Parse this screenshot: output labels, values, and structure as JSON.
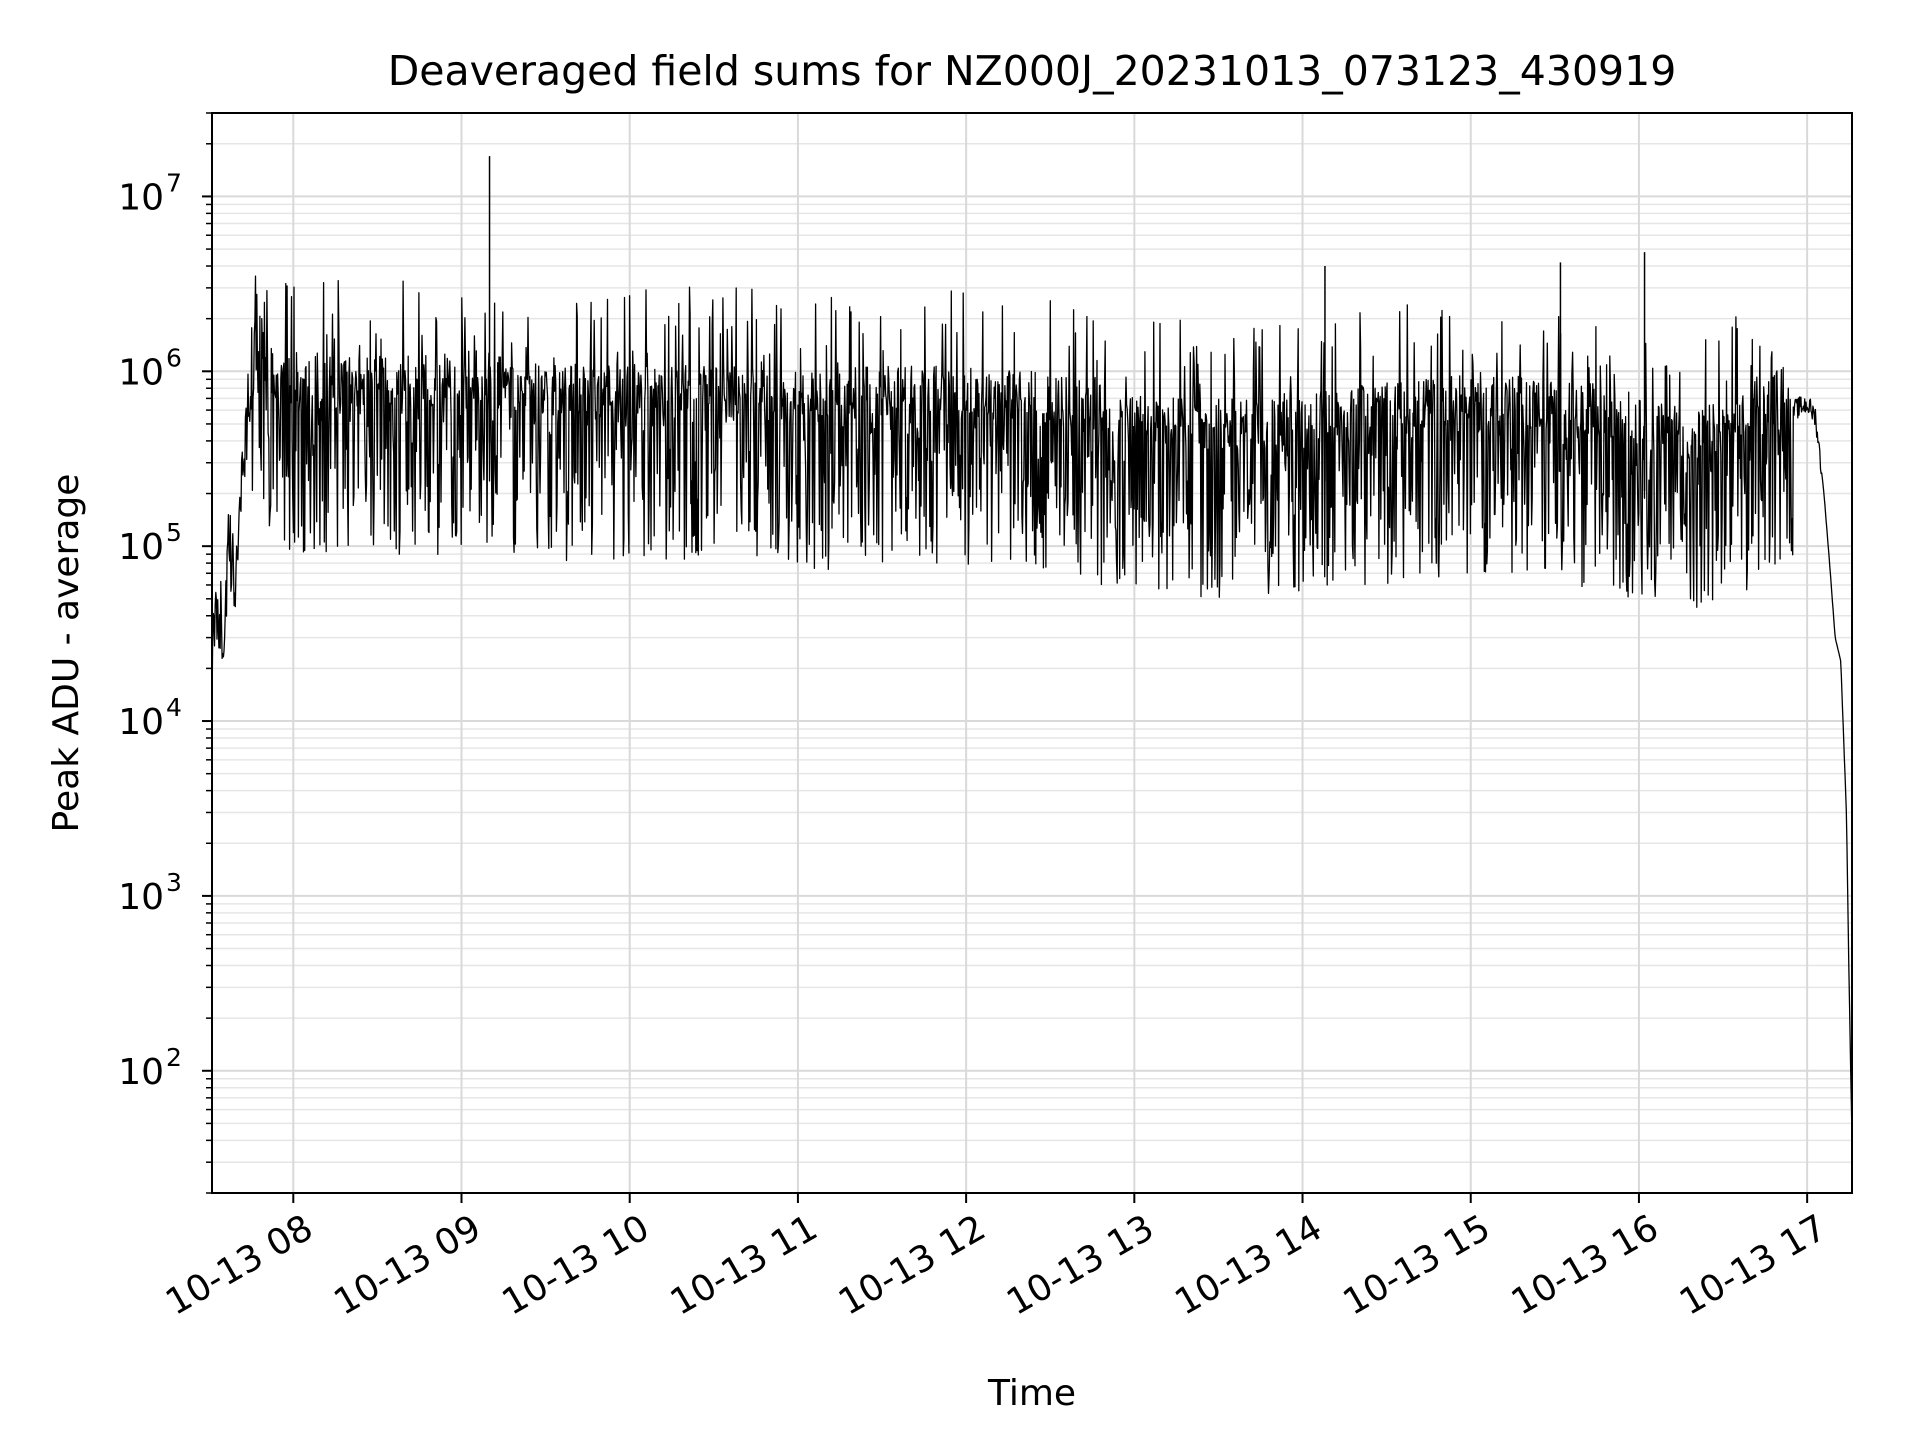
{
  "chart_data": {
    "type": "line",
    "title": "Deaveraged field sums for NZ000J_20231013_073123_430919",
    "xlabel": "Time",
    "ylabel": "Peak ADU - average",
    "yscale": "log",
    "ylim": [
      20,
      30000000
    ],
    "xlim": [
      "2023-10-13 07:31",
      "2023-10-13 17:16"
    ],
    "grid": true,
    "line_color": "#000000",
    "x_ticks": [
      "10-13 08",
      "10-13 09",
      "10-13 10",
      "10-13 11",
      "10-13 12",
      "10-13 13",
      "10-13 14",
      "10-13 15",
      "10-13 16",
      "10-13 17"
    ],
    "y_ticks": [
      {
        "base": "10",
        "exp": "2"
      },
      {
        "base": "10",
        "exp": "3"
      },
      {
        "base": "10",
        "exp": "4"
      },
      {
        "base": "10",
        "exp": "5"
      },
      {
        "base": "10",
        "exp": "6"
      },
      {
        "base": "10",
        "exp": "7"
      }
    ],
    "series": [
      {
        "x": [
          "2023-10-13 07:31",
          "2023-10-13 07:33",
          "2023-10-13 07:35",
          "2023-10-13 07:37",
          "2023-10-13 07:39",
          "2023-10-13 07:42",
          "2023-10-13 07:45",
          "2023-10-13 07:48",
          "2023-10-13 07:52",
          "2023-10-13 07:56",
          "2023-10-13 08:00",
          "2023-10-13 08:10",
          "2023-10-13 08:30",
          "2023-10-13 08:50",
          "2023-10-13 09:00",
          "2023-10-13 09:10",
          "2023-10-13 09:30",
          "2023-10-13 10:00",
          "2023-10-13 10:30",
          "2023-10-13 11:00",
          "2023-10-13 11:30",
          "2023-10-13 12:00",
          "2023-10-13 12:30",
          "2023-10-13 13:00",
          "2023-10-13 13:30",
          "2023-10-13 14:00",
          "2023-10-13 14:30",
          "2023-10-13 15:00",
          "2023-10-13 15:30",
          "2023-10-13 16:00",
          "2023-10-13 16:20",
          "2023-10-13 16:40",
          "2023-10-13 16:55",
          "2023-10-13 17:00",
          "2023-10-13 17:03",
          "2023-10-13 17:06",
          "2023-10-13 17:08",
          "2023-10-13 17:10",
          "2023-10-13 17:12",
          "2023-10-13 17:14",
          "2023-10-13 17:15",
          "2023-10-13 17:16"
        ],
        "y": [
          20000,
          50000,
          30000,
          100000,
          60000,
          300000,
          900000,
          1100000,
          700000,
          600000,
          650000,
          600000,
          650000,
          600000,
          700000,
          650000,
          550000,
          550000,
          550000,
          500000,
          550000,
          550000,
          500000,
          380000,
          350000,
          380000,
          430000,
          500000,
          450000,
          350000,
          300000,
          400000,
          600000,
          650000,
          550000,
          200000,
          80000,
          30000,
          22000,
          3000,
          300,
          40
        ]
      }
    ],
    "spikes": [
      {
        "x": "2023-10-13 09:10",
        "y": 17000000
      },
      {
        "x": "2023-10-13 14:08",
        "y": 4000000
      },
      {
        "x": "2023-10-13 15:32",
        "y": 4200000
      },
      {
        "x": "2023-10-13 16:02",
        "y": 4800000
      }
    ]
  }
}
